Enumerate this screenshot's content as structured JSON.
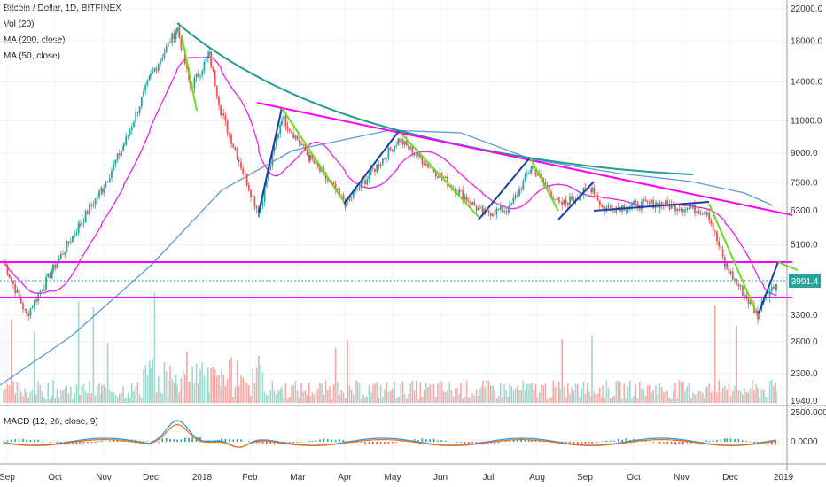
{
  "header": {
    "symbol": "Bitcoin / Dollar, 1D, BITFINEX",
    "vol": "Vol (20)",
    "ma200": "MA (200, close)",
    "ma50": "MA (50, close)",
    "macd": "MACD (12, 26, close, 9)"
  },
  "chart_data": {
    "type": "line",
    "price_ticks": [
      "22000.0",
      "18000.0",
      "14000.0",
      "11000.0",
      "9000.0",
      "7500.0",
      "6300.0",
      "5100.0",
      "3300.0",
      "2800.0",
      "2300.0",
      "1940.0"
    ],
    "macd_ticks": [
      "2500.0000",
      "0.0000"
    ],
    "x_ticks": [
      "Sep",
      "Oct",
      "Nov",
      "Dec",
      "2018",
      "Feb",
      "Mar",
      "Apr",
      "May",
      "Jun",
      "Jul",
      "Aug",
      "Sep",
      "Oct",
      "Nov",
      "Dec",
      "2019"
    ],
    "last_price": "3991.4",
    "price_series": [
      [
        "Sep",
        4600
      ],
      [
        "Sep",
        3300
      ],
      [
        "Oct",
        4400
      ],
      [
        "Oct",
        5800
      ],
      [
        "Nov",
        7200
      ],
      [
        "Nov",
        9500
      ],
      [
        "Dec",
        14500
      ],
      [
        "Dec",
        19500
      ],
      [
        "Dec",
        13500
      ],
      [
        "2018",
        16500
      ],
      [
        "2018",
        11500
      ],
      [
        "Feb",
        6200
      ],
      [
        "Feb",
        11300
      ],
      [
        "Mar",
        8700
      ],
      [
        "Apr",
        6600
      ],
      [
        "May",
        9800
      ],
      [
        "Jun",
        7000
      ],
      [
        "Jun",
        6200
      ],
      [
        "Jul",
        6400
      ],
      [
        "Jul",
        8300
      ],
      [
        "Aug",
        6500
      ],
      [
        "Sep",
        7300
      ],
      [
        "Sep",
        6400
      ],
      [
        "Oct",
        6600
      ],
      [
        "Nov",
        6300
      ],
      [
        "Nov",
        4500
      ],
      [
        "Dec",
        3300
      ],
      [
        "Dec",
        3700
      ],
      [
        "2019",
        4000
      ]
    ],
    "colors": {
      "up": "#26a69a",
      "down": "#ef5350",
      "ma200": "#5b9bd5",
      "ma50": "#e91ee9",
      "trendline": "#1f9e8f",
      "magenta_lines": "#ff00ff",
      "blue_lines": "#1a3ea8",
      "green_lines": "#66dd22",
      "macd": "#2196f3",
      "signal": "#ff6d00"
    }
  }
}
